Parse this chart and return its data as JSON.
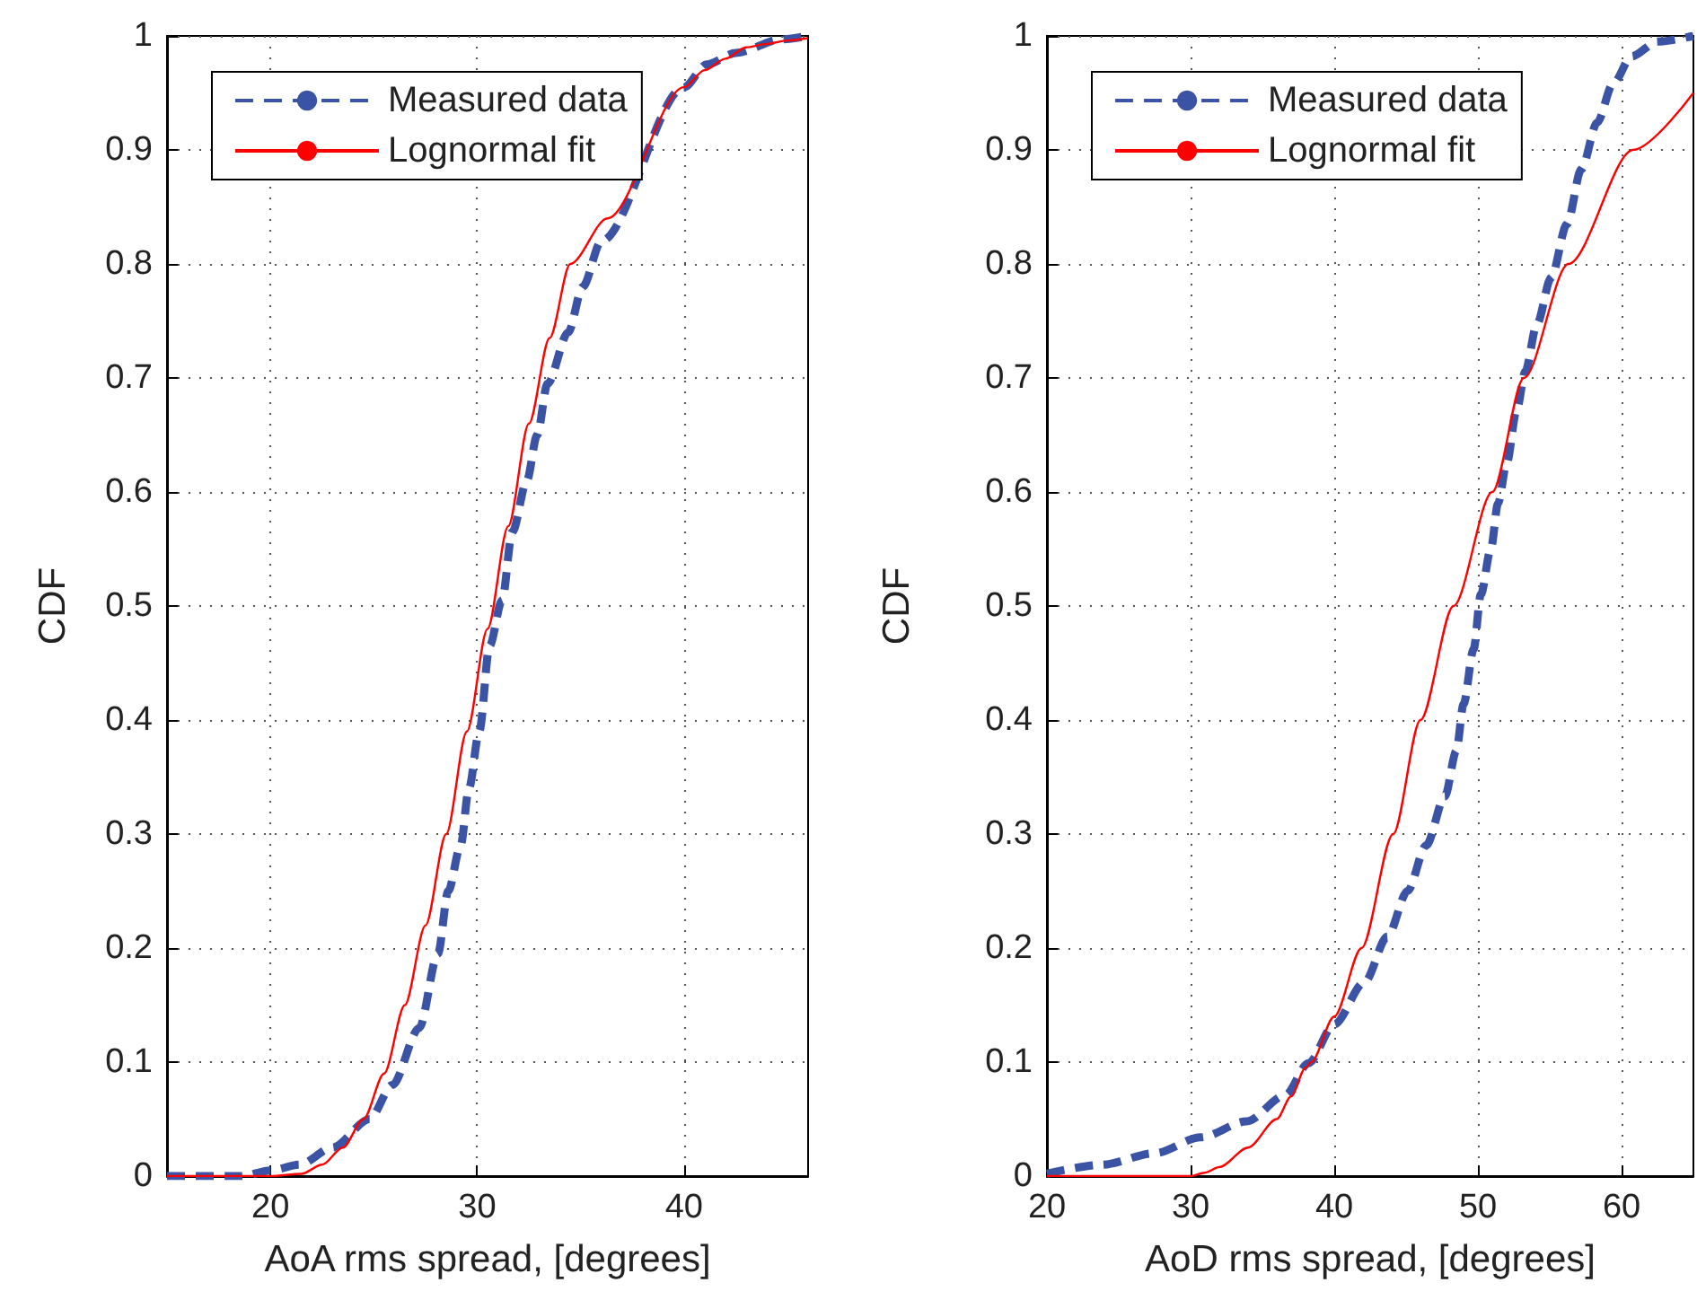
{
  "chart_data": [
    {
      "type": "line",
      "xlabel": "AoA rms spread, [degrees]",
      "ylabel": "CDF",
      "xlim": [
        15,
        46
      ],
      "xticks": [
        20,
        30,
        40
      ],
      "ylim": [
        0,
        1
      ],
      "yticks": [
        0,
        0.1,
        0.2,
        0.3,
        0.4,
        0.5,
        0.6,
        0.7,
        0.8,
        0.9,
        1
      ],
      "grid": true,
      "legend": "top left",
      "marker": "none",
      "series": [
        {
          "name": "Measured data",
          "color": "#3a53a4",
          "line_style": "dashed",
          "x": [
            15,
            18.6,
            20,
            21.4,
            23,
            24.8,
            25.9,
            27.2,
            28.1,
            28.6,
            29.2,
            29.6,
            30.1,
            30.6,
            31.2,
            31.7,
            32.4,
            32.9,
            33.4,
            34.4,
            35.1,
            36.0,
            40,
            41.1,
            42.5,
            44.7,
            46
          ],
          "values": [
            0,
            0,
            0.005,
            0.01,
            0.025,
            0.05,
            0.08,
            0.13,
            0.195,
            0.25,
            0.29,
            0.34,
            0.39,
            0.465,
            0.505,
            0.565,
            0.61,
            0.65,
            0.695,
            0.74,
            0.78,
            0.82,
            0.955,
            0.975,
            0.985,
            0.997,
            1
          ]
        },
        {
          "name": "Lognormal fit",
          "color": "#ff0000",
          "line_style": "solid",
          "x": [
            15,
            20,
            21.5,
            22.5,
            23.5,
            24.5,
            25.5,
            26.5,
            27.5,
            28.5,
            29.5,
            30.5,
            31.5,
            32.5,
            33.5,
            34.5,
            36.3,
            40,
            41,
            42,
            43,
            44,
            45,
            46
          ],
          "values": [
            0,
            0,
            0.002,
            0.01,
            0.025,
            0.05,
            0.09,
            0.15,
            0.22,
            0.3,
            0.39,
            0.48,
            0.57,
            0.66,
            0.735,
            0.8,
            0.84,
            0.955,
            0.97,
            0.98,
            0.99,
            0.993,
            0.996,
            0.998
          ]
        }
      ]
    },
    {
      "type": "line",
      "xlabel": "AoD rms spread, [degrees]",
      "ylabel": "CDF",
      "xlim": [
        20,
        65
      ],
      "xticks": [
        20,
        30,
        40,
        50,
        60
      ],
      "ylim": [
        0,
        1
      ],
      "yticks": [
        0,
        0.1,
        0.2,
        0.3,
        0.4,
        0.5,
        0.6,
        0.7,
        0.8,
        0.9,
        1
      ],
      "grid": true,
      "legend": "top left",
      "marker": "none",
      "series": [
        {
          "name": "Measured data",
          "color": "#3a53a4",
          "line_style": "dashed",
          "x": [
            20,
            23.8,
            27.5,
            30.7,
            33.9,
            36.6,
            38.2,
            40,
            42.1,
            43.7,
            45.1,
            46.4,
            47.7,
            48.5,
            49.0,
            49.7,
            50.2,
            50.9,
            51.4,
            52.0,
            52.7,
            53.3,
            54.1,
            55.1,
            56.2,
            57.2,
            58.3,
            59.4,
            60.7,
            62.5,
            65
          ],
          "values": [
            0.002,
            0.01,
            0.02,
            0.034,
            0.048,
            0.071,
            0.099,
            0.133,
            0.17,
            0.21,
            0.25,
            0.29,
            0.333,
            0.373,
            0.414,
            0.462,
            0.51,
            0.55,
            0.59,
            0.625,
            0.672,
            0.706,
            0.747,
            0.788,
            0.835,
            0.883,
            0.924,
            0.958,
            0.982,
            0.995,
            1
          ]
        },
        {
          "name": "Lognormal fit",
          "color": "#ff0000",
          "line_style": "solid",
          "x": [
            20,
            30,
            31,
            32,
            34,
            36,
            37,
            38,
            38.4,
            40,
            41.9,
            44.1,
            46,
            48.3,
            51,
            53.2,
            56.3,
            60.8,
            65
          ],
          "values": [
            0,
            0,
            0.003,
            0.008,
            0.025,
            0.05,
            0.07,
            0.095,
            0.1,
            0.14,
            0.2,
            0.3,
            0.4,
            0.5,
            0.6,
            0.7,
            0.8,
            0.9,
            0.95
          ]
        }
      ]
    }
  ]
}
